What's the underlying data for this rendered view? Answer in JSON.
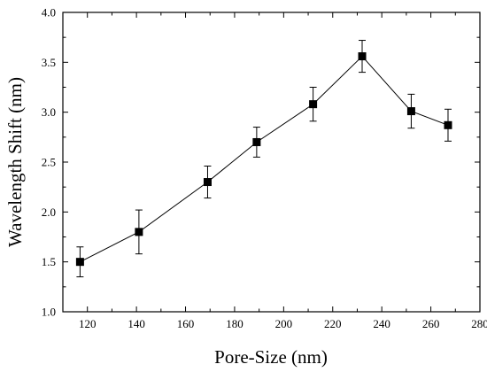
{
  "chart_data": {
    "type": "line",
    "xlabel": "Pore-Size (nm)",
    "ylabel": "Wavelength Shift (nm)",
    "xlim": [
      110,
      280
    ],
    "ylim": [
      1.0,
      4.0
    ],
    "x_ticks": [
      120,
      140,
      160,
      180,
      200,
      220,
      240,
      260,
      280
    ],
    "y_ticks": [
      1.0,
      1.5,
      2.0,
      2.5,
      3.0,
      3.5,
      4.0
    ],
    "x_tick_labels": [
      "120",
      "140",
      "160",
      "180",
      "200",
      "220",
      "240",
      "260",
      "280"
    ],
    "y_tick_labels": [
      "1.0",
      "1.5",
      "2.0",
      "2.5",
      "3.0",
      "3.5",
      "4.0"
    ],
    "grid": false,
    "marker": "square",
    "color": "#000000",
    "series": [
      {
        "x": [
          117,
          141,
          169,
          189,
          212,
          232,
          252,
          267
        ],
        "y": [
          1.5,
          1.8,
          2.3,
          2.7,
          3.08,
          3.56,
          3.01,
          2.87
        ],
        "error": [
          0.15,
          0.22,
          0.16,
          0.15,
          0.17,
          0.16,
          0.17,
          0.16
        ]
      }
    ]
  }
}
